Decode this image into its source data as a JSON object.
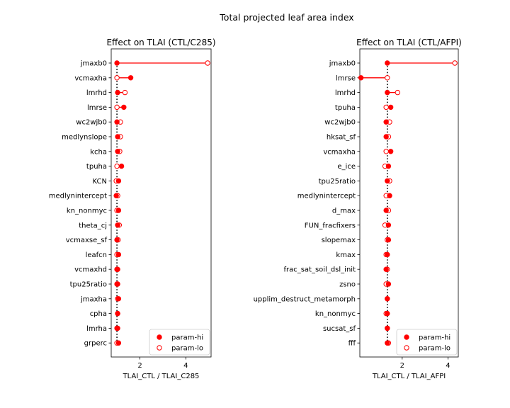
{
  "figure_title": "Total projected leaf area index",
  "colors": {
    "marker": "#ff0000",
    "baseline": "#000000",
    "axes": "#000000"
  },
  "chart_data": [
    {
      "type": "scatter",
      "title": "Effect on TLAI (CTL/C285)",
      "xlabel": "TLAI_CTL / TLAI_C285",
      "ylabel": "",
      "xlim": [
        0.75,
        5.1
      ],
      "xticks": [
        2,
        4
      ],
      "baseline": 1.0,
      "legend_position": "lower right",
      "legend": [
        "param-hi",
        "param-lo"
      ],
      "categories": [
        "jmaxb0",
        "vcmaxha",
        "lmrhd",
        "lmrse",
        "wc2wjb0",
        "medlynslope",
        "kcha",
        "tpuha",
        "KCN",
        "medlynintercept",
        "kn_nonmyc",
        "theta_cj",
        "vcmaxse_sf",
        "leafcn",
        "vcmaxhd",
        "tpu25ratio",
        "jmaxha",
        "cpha",
        "lmrha",
        "grperc"
      ],
      "series": [
        {
          "name": "param-hi",
          "marker": "filled",
          "values": [
            1.0,
            1.6,
            1.03,
            1.3,
            1.0,
            1.03,
            1.03,
            1.2,
            1.07,
            0.97,
            1.07,
            1.03,
            1.0,
            1.07,
            1.03,
            1.03,
            1.07,
            1.03,
            1.03,
            1.07
          ]
        },
        {
          "name": "param-lo",
          "marker": "open",
          "values": [
            4.95,
            1.0,
            1.35,
            1.0,
            1.15,
            1.15,
            1.12,
            1.0,
            0.97,
            1.03,
            1.0,
            1.1,
            1.05,
            1.0,
            1.0,
            1.0,
            1.03,
            1.03,
            1.0,
            1.0
          ]
        }
      ]
    },
    {
      "type": "scatter",
      "title": "Effect on TLAI (CTL/AFPI)",
      "xlabel": "TLAI_CTL / TLAI_AFPI",
      "ylabel": "",
      "xlim": [
        0.15,
        4.45
      ],
      "xticks": [
        2,
        4
      ],
      "baseline": 1.35,
      "legend_position": "lower right",
      "legend": [
        "param-hi",
        "param-lo"
      ],
      "categories": [
        "jmaxb0",
        "lmrse",
        "lmrhd",
        "tpuha",
        "wc2wjb0",
        "hksat_sf",
        "vcmaxha",
        "e_ice",
        "tpu25ratio",
        "medlynintercept",
        "d_max",
        "FUN_fracfixers",
        "slopemax",
        "kmax",
        "frac_sat_soil_dsl_init",
        "zsno",
        "upplim_destruct_metamorph",
        "kn_nonmyc",
        "sucsat_sf",
        "fff"
      ],
      "series": [
        {
          "name": "param-hi",
          "marker": "filled",
          "values": [
            1.35,
            0.2,
            1.35,
            1.5,
            1.3,
            1.3,
            1.5,
            1.4,
            1.35,
            1.45,
            1.3,
            1.4,
            1.4,
            1.35,
            1.3,
            1.4,
            1.35,
            1.35,
            1.35,
            1.35
          ]
        },
        {
          "name": "param-lo",
          "marker": "open",
          "values": [
            4.3,
            1.35,
            1.8,
            1.3,
            1.45,
            1.4,
            1.3,
            1.25,
            1.45,
            1.3,
            1.4,
            1.25,
            1.35,
            1.3,
            1.35,
            1.3,
            1.35,
            1.3,
            1.35,
            1.4
          ]
        }
      ]
    }
  ]
}
